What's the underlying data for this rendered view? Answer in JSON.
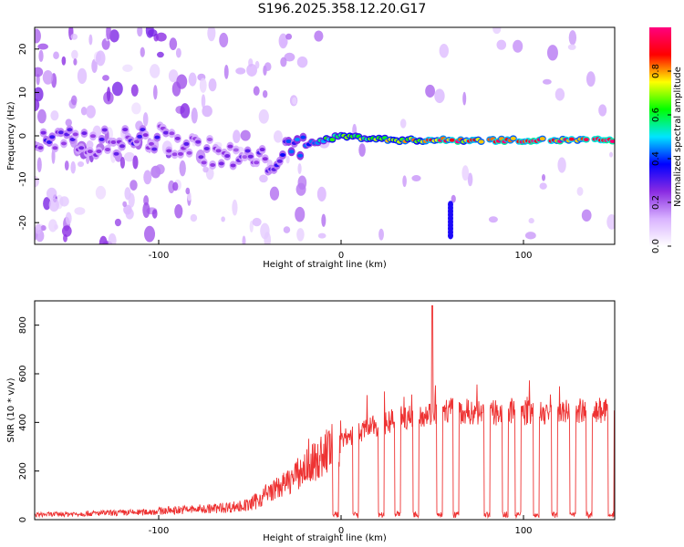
{
  "title": "S196.2025.358.12.20.G17",
  "chart_data": [
    {
      "type": "heatmap",
      "title": "S196.2025.358.12.20.G17",
      "xlabel": "Height of straight line (km)",
      "ylabel": "Frequency (Hz)",
      "xlim": [
        -168,
        150
      ],
      "ylim": [
        -25,
        25
      ],
      "xticks": [
        -100,
        0,
        100
      ],
      "yticks": [
        -20,
        -10,
        0,
        10,
        20
      ],
      "colorbar": {
        "label": "Normalized spectral amplitude",
        "range": [
          0,
          1
        ],
        "ticks": [
          "0.0",
          "0.2",
          "0.4",
          "0.6",
          "0.8"
        ],
        "colors": [
          "#ffffff",
          "#d9b3ff",
          "#8a2be2",
          "#0000ff",
          "#00e5ff",
          "#00ff00",
          "#ffff00",
          "#ff0000",
          "#ff007f"
        ]
      },
      "ridge": [
        {
          "x": -130,
          "f": -1.5,
          "amp": 0.3
        },
        {
          "x": -100,
          "f": -0.5,
          "amp": 0.3
        },
        {
          "x": -60,
          "f": -5,
          "amp": 0.25
        },
        {
          "x": -40,
          "f": -6,
          "amp": 0.3
        },
        {
          "x": -20,
          "f": -2,
          "amp": 0.45
        },
        {
          "x": 0,
          "f": 0,
          "amp": 0.7
        },
        {
          "x": 30,
          "f": -1,
          "amp": 0.75
        },
        {
          "x": 55,
          "f": -1,
          "amp": 0.9
        },
        {
          "x": 100,
          "f": -1,
          "amp": 0.95
        },
        {
          "x": 145,
          "f": -1,
          "amp": 0.95
        }
      ],
      "gaps_km": [
        62,
        79,
        96,
        113,
        128,
        137
      ],
      "spurs": [
        {
          "x": 60,
          "f_from": -23,
          "f_to": -15
        }
      ]
    },
    {
      "type": "line",
      "xlabel": "Height of straight line (km)",
      "ylabel": "SNR (10 * v/v)",
      "xlim": [
        -168,
        150
      ],
      "ylim": [
        0,
        900
      ],
      "xticks": [
        -100,
        0,
        100
      ],
      "yticks": [
        0,
        200,
        400,
        600,
        800
      ],
      "color": "#ee3333",
      "series": [
        {
          "name": "SNR",
          "x": [
            -168,
            -140,
            -110,
            -90,
            -70,
            -50,
            -40,
            -30,
            -20,
            -12,
            -5,
            0,
            10,
            20,
            30,
            40,
            50,
            60,
            70,
            80,
            100,
            120,
            140,
            150
          ],
          "y": [
            20,
            25,
            30,
            40,
            45,
            60,
            110,
            150,
            210,
            250,
            300,
            330,
            360,
            390,
            410,
            430,
            440,
            450,
            440,
            440,
            440,
            440,
            450,
            440
          ]
        }
      ],
      "dropouts_km": [
        -3,
        8,
        22,
        31,
        41,
        54,
        63,
        80,
        90,
        97,
        107,
        117,
        127,
        136,
        148
      ],
      "peak": {
        "x": 50,
        "y": 880
      }
    }
  ]
}
